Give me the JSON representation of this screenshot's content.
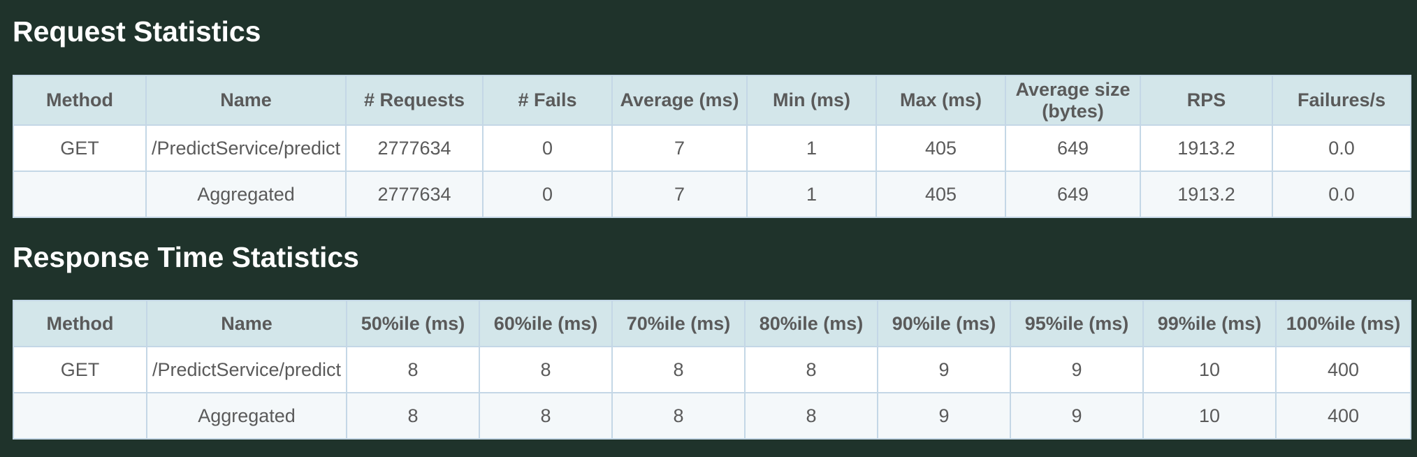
{
  "request_stats": {
    "title": "Request Statistics",
    "headers": [
      "Method",
      "Name",
      "# Requests",
      "# Fails",
      "Average (ms)",
      "Min (ms)",
      "Max (ms)",
      "Average size (bytes)",
      "RPS",
      "Failures/s"
    ],
    "rows": [
      [
        "GET",
        "/PredictService/predict",
        "2777634",
        "0",
        "7",
        "1",
        "405",
        "649",
        "1913.2",
        "0.0"
      ],
      [
        "",
        "Aggregated",
        "2777634",
        "0",
        "7",
        "1",
        "405",
        "649",
        "1913.2",
        "0.0"
      ]
    ]
  },
  "response_time_stats": {
    "title": "Response Time Statistics",
    "headers": [
      "Method",
      "Name",
      "50%ile (ms)",
      "60%ile (ms)",
      "70%ile (ms)",
      "80%ile (ms)",
      "90%ile (ms)",
      "95%ile (ms)",
      "99%ile (ms)",
      "100%ile (ms)"
    ],
    "rows": [
      [
        "GET",
        "/PredictService/predict",
        "8",
        "8",
        "8",
        "8",
        "9",
        "9",
        "10",
        "400"
      ],
      [
        "",
        "Aggregated",
        "8",
        "8",
        "8",
        "8",
        "9",
        "9",
        "10",
        "400"
      ]
    ]
  },
  "colors": {
    "page_background": "#1f332b",
    "header_background": "#d3e6ea",
    "cell_border": "#c4d7e6",
    "text": "#5a5a5a"
  }
}
